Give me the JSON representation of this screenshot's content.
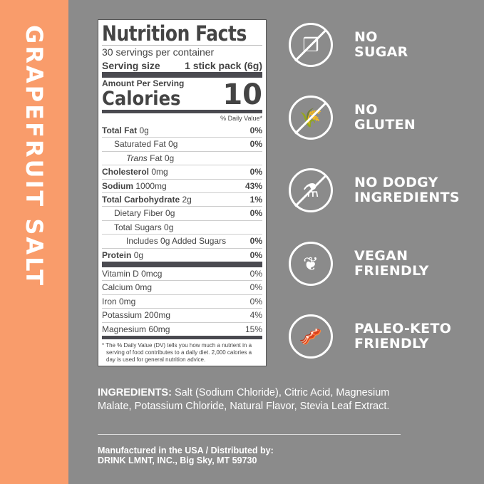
{
  "flavor": "GRAPEFRUIT SALT",
  "colors": {
    "stripe": "#f99c6b",
    "background": "#8b8b8b",
    "label_text": "#444444"
  },
  "nutrition": {
    "title": "Nutrition Facts",
    "servings": "30 servings per container",
    "serving_size_label": "Serving size",
    "serving_size_value": "1 stick pack (6g)",
    "amount_per_serving": "Amount Per Serving",
    "calories_label": "Calories",
    "calories_value": "10",
    "dv_header": "% Daily Value*",
    "rows": [
      {
        "name": "Total Fat",
        "amount": "0g",
        "pct": "0%"
      },
      {
        "name": "Saturated Fat",
        "amount": "0g",
        "pct": "0%"
      },
      {
        "name": "Trans",
        "amount": "Fat 0g",
        "pct": ""
      },
      {
        "name": "Cholesterol",
        "amount": "0mg",
        "pct": "0%"
      },
      {
        "name": "Sodium",
        "amount": "1000mg",
        "pct": "43%"
      },
      {
        "name": "Total Carbohydrate",
        "amount": "2g",
        "pct": "1%"
      },
      {
        "name": "Dietary Fiber",
        "amount": "0g",
        "pct": "0%"
      },
      {
        "name": "Total Sugars",
        "amount": "0g",
        "pct": ""
      },
      {
        "name": "Includes 0g Added Sugars",
        "amount": "",
        "pct": "0%"
      },
      {
        "name": "Protein",
        "amount": "0g",
        "pct": "0%"
      }
    ],
    "minerals": [
      {
        "name": "Vitamin D 0mcg",
        "pct": "0%"
      },
      {
        "name": "Calcium 0mg",
        "pct": "0%"
      },
      {
        "name": "Iron 0mg",
        "pct": "0%"
      },
      {
        "name": "Potassium 200mg",
        "pct": "4%"
      },
      {
        "name": "Magnesium 60mg",
        "pct": "15%"
      }
    ],
    "footnote": "* The % Daily Value (DV) tells you how much a nutrient in a serving of food contributes to a daily diet. 2,000 calories a day is used for general nutrition advice."
  },
  "features": [
    {
      "icon": "no-sugar-cubes-icon",
      "line1": "NO",
      "line2": "SUGAR"
    },
    {
      "icon": "no-wheat-icon",
      "line1": "NO",
      "line2": "GLUTEN"
    },
    {
      "icon": "no-lab-flask-icon",
      "line1": "NO DODGY",
      "line2": "INGREDIENTS"
    },
    {
      "icon": "leaf-icon",
      "line1": "VEGAN",
      "line2": "FRIENDLY"
    },
    {
      "icon": "bacon-avocado-egg-icon",
      "line1": "PALEO-KETO",
      "line2": "FRIENDLY"
    }
  ],
  "ingredients": {
    "label": "INGREDIENTS:",
    "text": " Salt (Sodium Chloride), Citric Acid, Magnesium Malate, Potassium Chloride, Natural Flavor, Stevia Leaf Extract."
  },
  "manufacturer": {
    "line1": "Manufactured in the USA / Distributed by:",
    "line2": "DRINK LMNT, INC., Big Sky, MT 59730"
  }
}
